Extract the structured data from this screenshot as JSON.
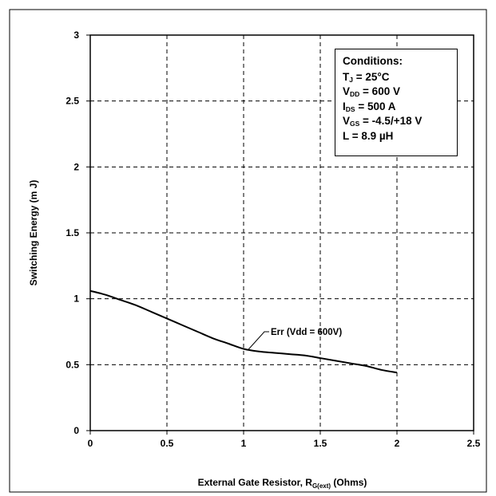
{
  "chart_data": {
    "type": "line",
    "title": "",
    "xlabel_main": "External Gate Resistor, R",
    "xlabel_sub": "G(ext)",
    "xlabel_unit": " (Ohms)",
    "ylabel": "Switching Energy (m J)",
    "xlim": [
      0,
      2.5
    ],
    "ylim": [
      0,
      3
    ],
    "x_ticks": [
      "0",
      "0.5",
      "1",
      "1.5",
      "2",
      "2.5"
    ],
    "y_ticks": [
      "0",
      "0.5",
      "1",
      "1.5",
      "2",
      "2.5",
      "3"
    ],
    "grid": true,
    "series": [
      {
        "name": "Err (Vdd = 600V)",
        "x": [
          0,
          0.1,
          0.2,
          0.3,
          0.4,
          0.5,
          0.6,
          0.7,
          0.8,
          0.9,
          1.0,
          1.1,
          1.2,
          1.3,
          1.4,
          1.5,
          1.6,
          1.7,
          1.8,
          1.9,
          2.0
        ],
        "y": [
          1.06,
          1.03,
          0.99,
          0.95,
          0.9,
          0.85,
          0.8,
          0.75,
          0.7,
          0.66,
          0.62,
          0.6,
          0.59,
          0.58,
          0.57,
          0.55,
          0.53,
          0.51,
          0.49,
          0.46,
          0.44
        ]
      }
    ],
    "annotations": [
      {
        "text": "Err (Vdd = 600V)",
        "series": 0
      }
    ]
  },
  "conditions": {
    "title": "Conditions:",
    "lines": [
      {
        "main": "T",
        "sub": "J",
        "rest": " = 25°C"
      },
      {
        "main": "V",
        "sub": "DD",
        "rest": " = 600 V"
      },
      {
        "main": "I",
        "sub": "DS",
        "rest": " = 500 A"
      },
      {
        "main": "V",
        "sub": "GS",
        "rest": " = -4.5/+18 V"
      },
      {
        "main": "L = 8.9 µH",
        "sub": "",
        "rest": ""
      }
    ]
  }
}
